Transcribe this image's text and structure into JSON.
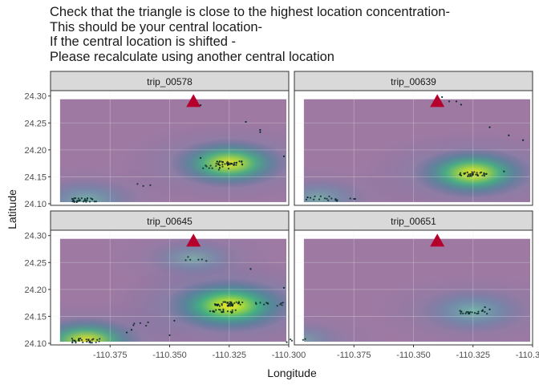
{
  "title_lines": [
    "Check that the triangle is close to the highest location concentration-",
    "This should be your central location-",
    "If the central location is shifted -",
    "Please recalculate using another central location"
  ],
  "xlabel": "Longitude",
  "ylabel": "Latitude",
  "colors": {
    "density_low": "#440154",
    "density_mid": "#21908c",
    "density_high": "#fde725",
    "triangle": "#b5002d",
    "points": "#0a2a2a",
    "strip_bg": "#d9d9d9",
    "panel_border": "#333333"
  },
  "chart_data": {
    "type": "scatter",
    "subtype": "faceted 2D density with points and central-location marker",
    "facet_layout": "2x2",
    "grid": true,
    "x_ticks": [
      -110.375,
      -110.35,
      -110.325,
      -110.3
    ],
    "x_tick_labels": [
      "-110.375",
      "-110.350",
      "-110.325",
      "-110.300"
    ],
    "y_ticks": [
      24.1,
      24.15,
      24.2,
      24.25,
      24.3
    ],
    "y_tick_labels": [
      "24.10",
      "24.15",
      "24.20",
      "24.25",
      "24.30"
    ],
    "xlim": [
      -110.4,
      -110.3
    ],
    "ylim": [
      24.097,
      24.31
    ],
    "central_location": {
      "x": -110.34,
      "y": 24.29
    },
    "facets": [
      {
        "label": "trip_00578",
        "hotspots": [
          {
            "x": -110.325,
            "y": 24.175,
            "intensity": 0.75
          },
          {
            "x": -110.385,
            "y": 24.107,
            "intensity": 0.45
          }
        ],
        "clusters": [
          {
            "x": -110.325,
            "y": 24.175,
            "n": 40
          },
          {
            "x": -110.33,
            "y": 24.167,
            "n": 12
          },
          {
            "x": -110.385,
            "y": 24.107,
            "n": 30
          },
          {
            "x": -110.363,
            "y": 24.133,
            "n": 3
          }
        ],
        "points": [
          [
            -110.337,
            24.283
          ],
          [
            -110.318,
            24.252
          ],
          [
            -110.312,
            24.237
          ],
          [
            -110.312,
            24.233
          ],
          [
            -110.302,
            24.188
          ],
          [
            -110.337,
            24.185
          ]
        ]
      },
      {
        "label": "trip_00639",
        "hotspots": [
          {
            "x": -110.325,
            "y": 24.157,
            "intensity": 0.8
          },
          {
            "x": -110.39,
            "y": 24.11,
            "intensity": 0.3
          }
        ],
        "clusters": [
          {
            "x": -110.325,
            "y": 24.155,
            "n": 35
          },
          {
            "x": -110.39,
            "y": 24.11,
            "n": 12
          },
          {
            "x": -110.38,
            "y": 24.108,
            "n": 8
          }
        ],
        "points": [
          [
            -110.338,
            24.298
          ],
          [
            -110.335,
            24.29
          ],
          [
            -110.332,
            24.29
          ],
          [
            -110.33,
            24.284
          ],
          [
            -110.318,
            24.242
          ],
          [
            -110.31,
            24.227
          ],
          [
            -110.304,
            24.218
          ],
          [
            -110.312,
            24.16
          ]
        ]
      },
      {
        "label": "trip_00645",
        "hotspots": [
          {
            "x": -110.325,
            "y": 24.17,
            "intensity": 1.0
          },
          {
            "x": -110.385,
            "y": 24.105,
            "intensity": 0.65
          },
          {
            "x": -110.34,
            "y": 24.258,
            "intensity": 0.2
          }
        ],
        "clusters": [
          {
            "x": -110.325,
            "y": 24.173,
            "n": 45
          },
          {
            "x": -110.327,
            "y": 24.16,
            "n": 20
          },
          {
            "x": -110.308,
            "y": 24.173,
            "n": 12
          },
          {
            "x": -110.385,
            "y": 24.105,
            "n": 30
          },
          {
            "x": -110.34,
            "y": 24.257,
            "n": 6
          },
          {
            "x": -110.363,
            "y": 24.135,
            "n": 5
          }
        ],
        "points": [
          [
            -110.316,
            24.238
          ],
          [
            -110.302,
            24.203
          ],
          [
            -110.348,
            24.142
          ],
          [
            -110.35,
            24.115
          ],
          [
            -110.366,
            24.125
          ],
          [
            -110.368,
            24.12
          ]
        ]
      },
      {
        "label": "trip_00651",
        "hotspots": [
          {
            "x": -110.325,
            "y": 24.16,
            "intensity": 0.55
          },
          {
            "x": -110.398,
            "y": 24.105,
            "intensity": 0.15
          }
        ],
        "clusters": [
          {
            "x": -110.325,
            "y": 24.158,
            "n": 22
          },
          {
            "x": -110.398,
            "y": 24.105,
            "n": 5
          }
        ],
        "points": [
          [
            -110.32,
            24.167
          ],
          [
            -110.318,
            24.163
          ]
        ]
      }
    ]
  }
}
